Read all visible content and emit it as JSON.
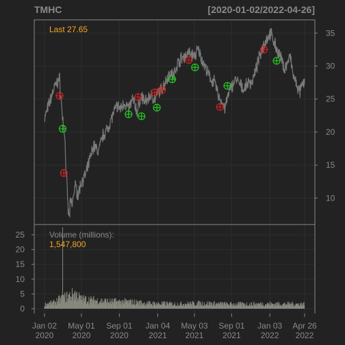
{
  "header": {
    "symbol": "TMHC",
    "range": "[2020-01-02/2022-04-26]"
  },
  "colors": {
    "background": "#222222",
    "panel_border": "#888888",
    "grid": "#2e2e2e",
    "price_line": "#7a7a7a",
    "volume_bars": "#8a8a80",
    "text": "#8a8a8a",
    "accent": "#f5a623",
    "buy_signal": "#22cc22",
    "sell_signal": "#cc2222"
  },
  "price_panel": {
    "last_label": "Last 27.65"
  },
  "volume_panel": {
    "label": "Volume (millions):",
    "value": "1,547,800"
  },
  "chart_data": [
    {
      "type": "line",
      "panel": "price",
      "x_ticks": [
        {
          "date": "2020-01-02",
          "label": "Jan 02\n2020"
        },
        {
          "date": "2020-05-01",
          "label": "May 01\n2020"
        },
        {
          "date": "2020-09-01",
          "label": "Sep 01\n2020"
        },
        {
          "date": "2021-01-04",
          "label": "Jan 04\n2021"
        },
        {
          "date": "2021-05-03",
          "label": "May 03\n2021"
        },
        {
          "date": "2021-09-01",
          "label": "Sep 01\n2021"
        },
        {
          "date": "2022-01-03",
          "label": "Jan 03\n2022"
        },
        {
          "date": "2022-04-26",
          "label": "Apr 26\n2022"
        }
      ],
      "y_ticks": [
        10,
        15,
        20,
        25,
        30,
        35
      ],
      "ylim": [
        6,
        37
      ],
      "xlim": [
        "2020-01-02",
        "2022-04-26"
      ],
      "grid": true,
      "y_axis_side": "right",
      "series": [
        {
          "values": [
            [
              "2020-01-02",
              22.0
            ],
            [
              "2020-01-15",
              24.0
            ],
            [
              "2020-02-01",
              26.5
            ],
            [
              "2020-02-12",
              27.5
            ],
            [
              "2020-02-20",
              28.0
            ],
            [
              "2020-02-24",
              25.5
            ],
            [
              "2020-02-28",
              23.0
            ],
            [
              "2020-03-04",
              21.0
            ],
            [
              "2020-03-08",
              19.5
            ],
            [
              "2020-03-12",
              14.0
            ],
            [
              "2020-03-16",
              11.0
            ],
            [
              "2020-03-19",
              8.0
            ],
            [
              "2020-03-23",
              7.0
            ],
            [
              "2020-03-26",
              9.5
            ],
            [
              "2020-04-01",
              9.0
            ],
            [
              "2020-04-10",
              12.0
            ],
            [
              "2020-04-20",
              10.5
            ],
            [
              "2020-05-01",
              12.5
            ],
            [
              "2020-05-15",
              13.5
            ],
            [
              "2020-06-01",
              16.5
            ],
            [
              "2020-06-10",
              18.0
            ],
            [
              "2020-06-25",
              17.0
            ],
            [
              "2020-07-10",
              19.5
            ],
            [
              "2020-07-25",
              20.5
            ],
            [
              "2020-08-10",
              22.5
            ],
            [
              "2020-08-25",
              24.0
            ],
            [
              "2020-09-05",
              23.5
            ],
            [
              "2020-09-18",
              24.5
            ],
            [
              "2020-10-01",
              23.5
            ],
            [
              "2020-10-15",
              25.0
            ],
            [
              "2020-10-30",
              23.0
            ],
            [
              "2020-11-10",
              25.5
            ],
            [
              "2020-11-25",
              24.5
            ],
            [
              "2020-12-10",
              25.5
            ],
            [
              "2020-12-28",
              25.0
            ],
            [
              "2021-01-05",
              26.0
            ],
            [
              "2021-01-18",
              26.5
            ],
            [
              "2021-02-01",
              28.0
            ],
            [
              "2021-02-12",
              29.0
            ],
            [
              "2021-02-25",
              28.5
            ],
            [
              "2021-03-05",
              30.0
            ],
            [
              "2021-03-18",
              31.0
            ],
            [
              "2021-04-01",
              31.5
            ],
            [
              "2021-04-15",
              32.0
            ],
            [
              "2021-05-03",
              31.5
            ],
            [
              "2021-05-15",
              32.5
            ],
            [
              "2021-05-28",
              31.0
            ],
            [
              "2021-06-10",
              29.5
            ],
            [
              "2021-06-25",
              28.0
            ],
            [
              "2021-07-08",
              27.5
            ],
            [
              "2021-07-20",
              25.5
            ],
            [
              "2021-08-01",
              24.5
            ],
            [
              "2021-08-10",
              23.5
            ],
            [
              "2021-08-20",
              25.5
            ],
            [
              "2021-09-01",
              27.0
            ],
            [
              "2021-09-15",
              28.0
            ],
            [
              "2021-09-30",
              27.0
            ],
            [
              "2021-10-12",
              26.5
            ],
            [
              "2021-10-25",
              27.5
            ],
            [
              "2021-11-05",
              27.5
            ],
            [
              "2021-11-20",
              29.5
            ],
            [
              "2021-12-01",
              31.5
            ],
            [
              "2021-12-15",
              33.5
            ],
            [
              "2021-12-30",
              34.5
            ],
            [
              "2022-01-05",
              35.0
            ],
            [
              "2022-01-18",
              33.5
            ],
            [
              "2022-01-30",
              32.0
            ],
            [
              "2022-02-10",
              31.0
            ],
            [
              "2022-02-20",
              29.5
            ],
            [
              "2022-03-01",
              30.5
            ],
            [
              "2022-03-10",
              31.5
            ],
            [
              "2022-03-20",
              28.5
            ],
            [
              "2022-04-01",
              27.0
            ],
            [
              "2022-04-10",
              26.0
            ],
            [
              "2022-04-18",
              27.0
            ],
            [
              "2022-04-26",
              27.65
            ]
          ]
        }
      ],
      "signals": [
        {
          "date": "2020-02-20",
          "value": 25.5,
          "type": "sell"
        },
        {
          "date": "2020-03-01",
          "value": 20.5,
          "type": "buy"
        },
        {
          "date": "2020-03-05",
          "value": 13.8,
          "type": "sell"
        },
        {
          "date": "2020-10-01",
          "value": 22.7,
          "type": "buy"
        },
        {
          "date": "2020-11-01",
          "value": 25.3,
          "type": "sell"
        },
        {
          "date": "2020-11-12",
          "value": 22.4,
          "type": "buy"
        },
        {
          "date": "2020-12-25",
          "value": 26.0,
          "type": "sell"
        },
        {
          "date": "2021-01-01",
          "value": 23.7,
          "type": "buy"
        },
        {
          "date": "2021-01-18",
          "value": 26.4,
          "type": "sell"
        },
        {
          "date": "2021-02-20",
          "value": 28.0,
          "type": "buy"
        },
        {
          "date": "2021-04-15",
          "value": 30.9,
          "type": "sell"
        },
        {
          "date": "2021-05-05",
          "value": 29.8,
          "type": "buy"
        },
        {
          "date": "2021-07-25",
          "value": 23.8,
          "type": "sell"
        },
        {
          "date": "2021-08-18",
          "value": 27.0,
          "type": "buy"
        },
        {
          "date": "2021-12-15",
          "value": 32.5,
          "type": "sell"
        },
        {
          "date": "2022-01-25",
          "value": 30.8,
          "type": "buy"
        }
      ]
    },
    {
      "type": "bar",
      "panel": "volume",
      "name": "Volume (millions)",
      "y_ticks": [
        0,
        5,
        10,
        15,
        20,
        25
      ],
      "ylim": [
        0,
        28
      ],
      "y_axis_side": "left",
      "grid": true,
      "last_value": 1.5478,
      "spike": {
        "date": "2020-03-01",
        "value": 27.5
      },
      "profile": [
        [
          "2020-01-02",
          1.5
        ],
        [
          "2020-02-01",
          2.0
        ],
        [
          "2020-02-20",
          3.0
        ],
        [
          "2020-03-15",
          4.0
        ],
        [
          "2020-04-10",
          5.0
        ],
        [
          "2020-05-01",
          3.2
        ],
        [
          "2020-06-15",
          2.8
        ],
        [
          "2020-08-01",
          2.4
        ],
        [
          "2020-10-01",
          2.3
        ],
        [
          "2020-12-01",
          1.8
        ],
        [
          "2021-03-01",
          1.6
        ],
        [
          "2021-06-01",
          1.8
        ],
        [
          "2021-09-01",
          1.5
        ],
        [
          "2022-01-01",
          1.6
        ],
        [
          "2022-04-26",
          1.55
        ]
      ]
    }
  ]
}
